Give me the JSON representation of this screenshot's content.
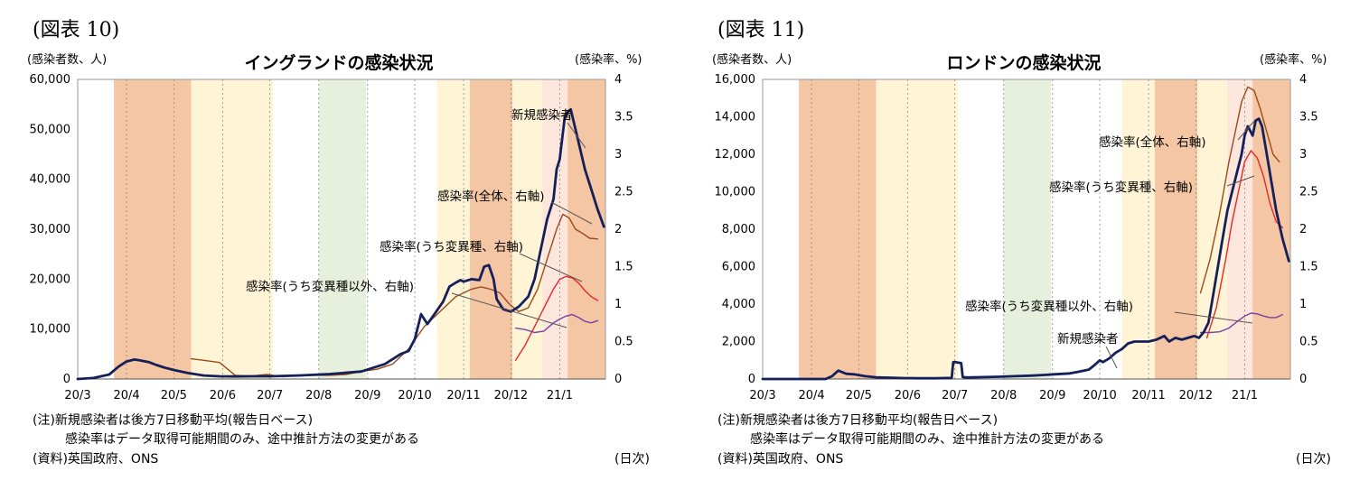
{
  "charts": [
    {
      "figure_label": "(図表 10)",
      "notes": [
        "(注)新規感染者は後方7日移動平均(報告日ベース)",
        "感染率はデータ取得可能期間のみ、途中推計方法の変更がある",
        "(資料)英国政府、ONS"
      ],
      "xunit": "(日次)",
      "annotations": [
        "新規感染者",
        "感染率(全体、右軸)",
        "感染率(うち変異種、右軸)",
        "感染率(うち変異種以外、右軸)"
      ]
    },
    {
      "figure_label": "(図表 11)",
      "notes": [
        "(注)新規感染者は後方7日移動平均(報告日ベース)",
        "感染率はデータ取得可能期間のみ、途中推計方法の変更がある",
        "(資料)英国政府、ONS"
      ],
      "xunit": "(日次)",
      "annotations": [
        "感染率(全体、右軸)",
        "感染率(うち変異種、右軸)",
        "感染率(うち変異種以外、右軸)",
        "新規感染者"
      ]
    }
  ],
  "colors": {
    "orange_band": "#f4c6a4",
    "yellow_band": "#fff5d6",
    "green_band": "#e6f0dc",
    "pink_band": "#fde6dc",
    "new_cases": "#15205a",
    "rate_total": "#9a4a1a",
    "rate_variant": "#e8262a",
    "rate_nonvariant": "#7a3fa0"
  },
  "chart_data": [
    {
      "type": "line",
      "title": "イングランドの感染状況",
      "ylabel": "(感染者数、人)",
      "y2label": "(感染率、%)",
      "ylim": [
        0,
        60000
      ],
      "y_ticks": [
        "0",
        "10,000",
        "20,000",
        "30,000",
        "40,000",
        "50,000",
        "60,000"
      ],
      "y2lim": [
        0,
        4
      ],
      "y2_ticks": [
        "0",
        "0.5",
        "1",
        "1.5",
        "2",
        "2.5",
        "3",
        "3.5",
        "4"
      ],
      "x_ticks": [
        "20/3",
        "20/4",
        "20/5",
        "20/6",
        "20/7",
        "20/8",
        "20/9",
        "20/10",
        "20/11",
        "20/12",
        "21/1"
      ],
      "x_tick_days": [
        0,
        31,
        61,
        92,
        122,
        153,
        184,
        214,
        245,
        275,
        306
      ],
      "xlim_days": [
        0,
        335
      ],
      "bands": [
        {
          "color": "orange",
          "from": 23,
          "to": 72
        },
        {
          "color": "yellow",
          "from": 72,
          "to": 124
        },
        {
          "color": "green",
          "from": 153,
          "to": 183
        },
        {
          "color": "yellow",
          "from": 228,
          "to": 249
        },
        {
          "color": "orange",
          "from": 249,
          "to": 276
        },
        {
          "color": "yellow",
          "from": 276,
          "to": 295
        },
        {
          "color": "pink",
          "from": 295,
          "to": 311
        },
        {
          "color": "orange",
          "from": 311,
          "to": 335
        }
      ],
      "vlines_days": [
        31,
        61,
        92,
        122,
        153,
        184,
        214,
        245,
        275,
        306
      ],
      "series": [
        {
          "name": "新規感染者",
          "axis": "left",
          "color": "new_cases",
          "width": 2.8,
          "x": [
            0,
            10,
            20,
            26,
            31,
            36,
            40,
            45,
            50,
            55,
            61,
            70,
            80,
            90,
            100,
            110,
            122,
            140,
            160,
            180,
            195,
            205,
            210,
            214,
            218,
            222,
            226,
            232,
            236,
            240,
            243,
            245,
            250,
            255,
            258,
            261,
            264,
            266,
            270,
            275,
            280,
            286,
            290,
            294,
            298,
            302,
            304,
            306,
            309,
            311,
            313,
            316,
            319,
            322,
            326,
            330,
            334
          ],
          "y": [
            0,
            200,
            900,
            2500,
            3500,
            3900,
            3700,
            3400,
            2800,
            2300,
            1800,
            1200,
            700,
            550,
            500,
            550,
            550,
            700,
            1000,
            1500,
            3000,
            5000,
            5600,
            8000,
            13000,
            11000,
            12800,
            15500,
            18500,
            19300,
            19800,
            19500,
            20000,
            19800,
            22500,
            22800,
            20000,
            16000,
            14000,
            13500,
            14500,
            16500,
            20000,
            26000,
            32000,
            36000,
            42000,
            44000,
            52000,
            53500,
            54000,
            50000,
            46000,
            42000,
            38000,
            34000,
            30500
          ]
        },
        {
          "name": "感染率(全体、右軸)",
          "axis": "right",
          "color": "rate_total",
          "width": 1.4,
          "x": [
            72,
            80,
            90,
            100,
            110,
            120,
            130,
            140,
            150,
            160,
            170,
            180,
            190,
            200,
            210,
            220,
            230,
            240,
            250,
            256,
            262,
            268,
            274,
            280,
            286,
            292,
            298,
            304,
            308,
            312,
            316,
            320,
            325,
            330
          ],
          "y": [
            0.27,
            0.25,
            0.22,
            0.05,
            0.04,
            0.06,
            0.03,
            0.05,
            0.05,
            0.05,
            0.06,
            0.1,
            0.13,
            0.2,
            0.4,
            0.7,
            0.9,
            1.1,
            1.2,
            1.23,
            1.2,
            1.15,
            1.0,
            0.9,
            0.95,
            1.2,
            1.6,
            2.0,
            2.2,
            2.15,
            2.0,
            1.95,
            1.88,
            1.87
          ]
        },
        {
          "name": "感染率(うち変異種、右軸)",
          "axis": "right",
          "color": "rate_variant",
          "width": 1.4,
          "x": [
            278,
            284,
            290,
            296,
            302,
            306,
            310,
            314,
            318,
            322,
            326,
            330
          ],
          "y": [
            0.25,
            0.45,
            0.7,
            0.95,
            1.2,
            1.33,
            1.37,
            1.35,
            1.28,
            1.18,
            1.1,
            1.05
          ]
        },
        {
          "name": "感染率(うち変異種以外、右軸)",
          "axis": "right",
          "color": "rate_nonvariant",
          "width": 1.4,
          "x": [
            278,
            284,
            290,
            296,
            302,
            306,
            310,
            314,
            318,
            322,
            326,
            330
          ],
          "y": [
            0.68,
            0.66,
            0.62,
            0.64,
            0.75,
            0.8,
            0.84,
            0.86,
            0.82,
            0.77,
            0.75,
            0.78
          ]
        }
      ]
    },
    {
      "type": "line",
      "title": "ロンドンの感染状況",
      "ylabel": "(感染者数、人)",
      "y2label": "(感染率、%)",
      "ylim": [
        0,
        16000
      ],
      "y_ticks": [
        "0",
        "2,000",
        "4,000",
        "6,000",
        "8,000",
        "10,000",
        "12,000",
        "14,000",
        "16,000"
      ],
      "y2lim": [
        0,
        4
      ],
      "y2_ticks": [
        "0",
        "0.5",
        "1",
        "1.5",
        "2",
        "2.5",
        "3",
        "3.5",
        "4"
      ],
      "x_ticks": [
        "20/3",
        "20/4",
        "20/5",
        "20/6",
        "20/7",
        "20/8",
        "20/9",
        "20/10",
        "20/11",
        "20/12",
        "21/1"
      ],
      "x_tick_days": [
        0,
        31,
        61,
        92,
        122,
        153,
        184,
        214,
        245,
        275,
        306
      ],
      "xlim_days": [
        0,
        335
      ],
      "bands": [
        {
          "color": "orange",
          "from": 23,
          "to": 72
        },
        {
          "color": "yellow",
          "from": 72,
          "to": 124
        },
        {
          "color": "green",
          "from": 153,
          "to": 183
        },
        {
          "color": "yellow",
          "from": 228,
          "to": 249
        },
        {
          "color": "orange",
          "from": 249,
          "to": 276
        },
        {
          "color": "yellow",
          "from": 276,
          "to": 295
        },
        {
          "color": "pink",
          "from": 295,
          "to": 311
        },
        {
          "color": "orange",
          "from": 311,
          "to": 335
        }
      ],
      "vlines_days": [
        31,
        61,
        92,
        122,
        153,
        184,
        214,
        245,
        275,
        306
      ],
      "series": [
        {
          "name": "新規感染者",
          "axis": "left",
          "color": "new_cases",
          "width": 2.8,
          "x": [
            0,
            20,
            40,
            44,
            48,
            53,
            58,
            65,
            72,
            80,
            90,
            100,
            110,
            120,
            121,
            122,
            126,
            127,
            130,
            140,
            150,
            160,
            170,
            180,
            185,
            195,
            200,
            207,
            210,
            214,
            216,
            220,
            224,
            228,
            232,
            236,
            240,
            245,
            250,
            255,
            258,
            262,
            266,
            270,
            274,
            277,
            280,
            283,
            286,
            289,
            292,
            295,
            298,
            301,
            304,
            306,
            308,
            311,
            313,
            315,
            317,
            320,
            323,
            326,
            330,
            334
          ],
          "y": [
            0,
            0,
            0,
            150,
            450,
            280,
            250,
            150,
            90,
            70,
            50,
            40,
            40,
            60,
            900,
            900,
            850,
            100,
            80,
            100,
            120,
            150,
            180,
            220,
            250,
            300,
            380,
            500,
            700,
            1000,
            900,
            1100,
            1400,
            1600,
            1900,
            2000,
            2000,
            2000,
            2100,
            2300,
            2000,
            2200,
            2100,
            2200,
            2300,
            2200,
            2500,
            3000,
            4500,
            6000,
            7500,
            9000,
            10000,
            11000,
            12000,
            13000,
            13500,
            13000,
            13800,
            13900,
            13500,
            12000,
            10500,
            9000,
            7500,
            6300
          ]
        },
        {
          "name": "感染率(全体、右軸)",
          "axis": "right",
          "color": "rate_total",
          "width": 1.4,
          "x": [
            278,
            284,
            290,
            296,
            300,
            304,
            308,
            312,
            316,
            320,
            324,
            328
          ],
          "y": [
            1.15,
            1.6,
            2.2,
            2.9,
            3.3,
            3.7,
            3.9,
            3.85,
            3.6,
            3.3,
            3.0,
            2.9
          ]
        },
        {
          "name": "感染率(うち変異種、右軸)",
          "axis": "right",
          "color": "rate_variant",
          "width": 1.4,
          "x": [
            282,
            288,
            294,
            298,
            302,
            306,
            310,
            314,
            318,
            322,
            326,
            330
          ],
          "y": [
            0.55,
            0.95,
            1.6,
            2.1,
            2.5,
            2.9,
            3.05,
            2.95,
            2.7,
            2.35,
            2.1,
            2.02
          ]
        },
        {
          "name": "感染率(うち変異種以外、右軸)",
          "axis": "right",
          "color": "rate_nonvariant",
          "width": 1.4,
          "x": [
            278,
            284,
            290,
            296,
            302,
            306,
            310,
            314,
            318,
            322,
            326,
            330
          ],
          "y": [
            0.62,
            0.62,
            0.63,
            0.68,
            0.78,
            0.84,
            0.88,
            0.87,
            0.84,
            0.82,
            0.82,
            0.86
          ]
        }
      ]
    }
  ]
}
